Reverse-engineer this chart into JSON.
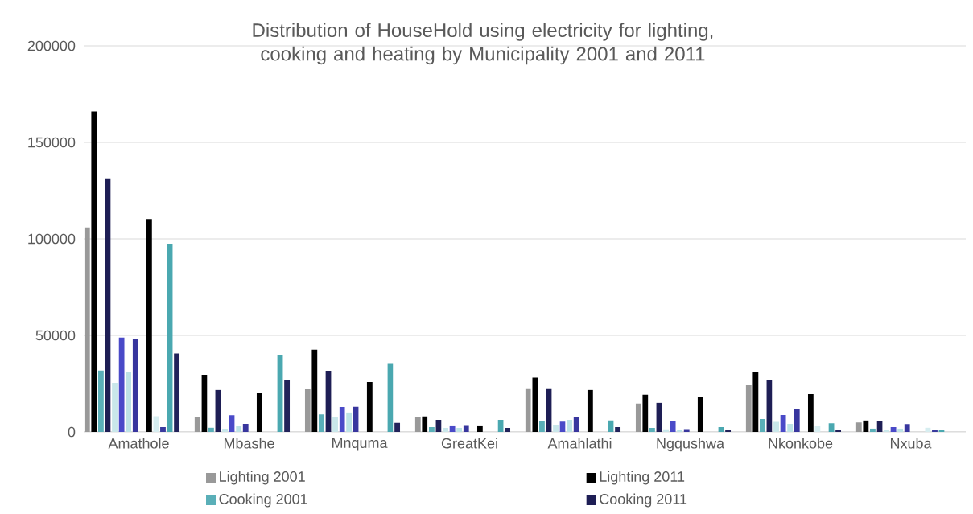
{
  "chart_data": {
    "type": "bar",
    "title": "Distribution of HouseHold using electricity for lighting, cooking and heating by Municipality 2001 and 2011",
    "categories": [
      "Amathole",
      "Mbashe",
      "Mnquma",
      "GreatKei",
      "Amahlathi",
      "Ngqushwa",
      "Nkonkobe",
      "Nxuba"
    ],
    "series": [
      {
        "name": "Lighting 2001",
        "color": "#999999",
        "values": [
          106000,
          7900,
          22100,
          7800,
          22600,
          14700,
          24200,
          4900
        ]
      },
      {
        "name": "Lighting 2011",
        "color": "#000000",
        "values": [
          166000,
          29600,
          42600,
          8000,
          28100,
          19300,
          31000,
          5900
        ]
      },
      {
        "name": "Cooking 2001",
        "color": "#5aafb8",
        "values": [
          31900,
          2200,
          9100,
          2500,
          5400,
          2100,
          6700,
          1800
        ]
      },
      {
        "name": "Cooking 2011",
        "color": "#1e1e55",
        "values": [
          131400,
          21800,
          31700,
          6300,
          22600,
          15100,
          26800,
          5400
        ]
      },
      {
        "color": "#c9e7ea",
        "values": [
          25400,
          1700,
          7500,
          2100,
          3800,
          1400,
          5200,
          1300
        ]
      },
      {
        "color": "#4a4ac8",
        "values": [
          48900,
          8600,
          12900,
          3400,
          5300,
          5400,
          8800,
          2500
        ]
      },
      {
        "color": "#bde3e6",
        "values": [
          31000,
          3200,
          10100,
          2100,
          6300,
          1000,
          4200,
          1800
        ]
      },
      {
        "color": "#38369e",
        "values": [
          47900,
          4200,
          13000,
          3500,
          7500,
          1500,
          12000,
          4100
        ]
      },
      {
        "values": [
          null,
          null,
          null,
          null,
          null,
          null,
          null,
          null
        ]
      },
      {
        "color": "#000000",
        "values": [
          110300,
          20100,
          25800,
          3400,
          21800,
          17900,
          19600,
          null
        ]
      },
      {
        "color": "#d6edf0",
        "values": [
          8100,
          null,
          null,
          null,
          null,
          null,
          3100,
          2200
        ]
      },
      {
        "color": "#3a3a9e",
        "values": [
          2500,
          null,
          null,
          null,
          null,
          null,
          null,
          1000
        ]
      },
      {
        "color": "#4aa8b0",
        "values": [
          97500,
          40000,
          35600,
          6300,
          5900,
          2500,
          4500,
          800
        ]
      },
      {
        "color": "#22225a",
        "values": [
          40600,
          26900,
          4700,
          2100,
          2500,
          800,
          1300,
          null
        ]
      },
      {
        "values": [
          null,
          null,
          null,
          null,
          null,
          null,
          null,
          null
        ]
      },
      {
        "values": [
          null,
          null,
          null,
          null,
          null,
          null,
          null,
          null
        ]
      }
    ],
    "ylim": [
      0,
      200000
    ],
    "yticks": [
      0,
      50000,
      100000,
      150000,
      200000
    ],
    "grid": "y",
    "legend": "bottom"
  }
}
